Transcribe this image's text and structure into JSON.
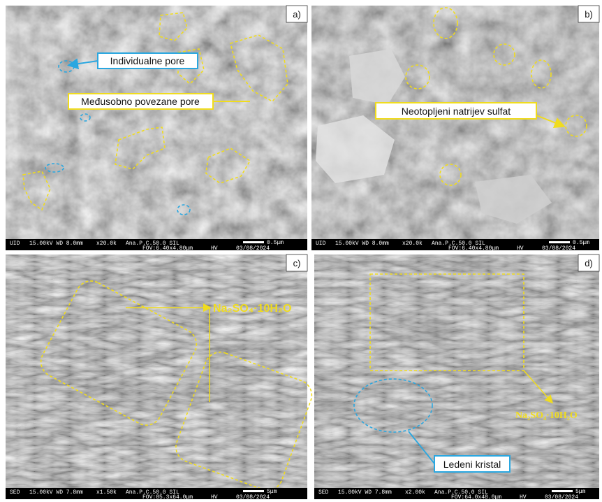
{
  "panels": [
    {
      "label": "a)",
      "info": {
        "mode": "UID",
        "params": "15.00kV WD 8.0mm",
        "mag": "x20.0k",
        "name": "Ana.P.C.50.0 SIL",
        "scale": "0.5μm",
        "fov": "FOV:6.40x4.80μm",
        "hv": "HV",
        "date": "03/08/2024"
      },
      "annotations": [
        "Individualne pore",
        "Međusobno povezane pore"
      ]
    },
    {
      "label": "b)",
      "info": {
        "mode": "UID",
        "params": "15.00kV WD 8.0mm",
        "mag": "x20.0k",
        "name": "Ana.P.C.50.0 SIL",
        "scale": "0.5μm",
        "fov": "FOV:6.40x4.80μm",
        "hv": "HV",
        "date": "03/08/2024"
      },
      "annotations": [
        "Neotopljeni natrijev sulfat"
      ]
    },
    {
      "label": "c)",
      "info": {
        "mode": "SED",
        "params": "15.00kV WD 7.8mm",
        "mag": "x1.50k",
        "name": "Ana.P.C.50.0 SIL",
        "scale": "5μm",
        "fov": "FOV:85.3x64.0μm",
        "hv": "HV",
        "date": "03/08/2024"
      },
      "annotations": [
        "Na₂SO₄·10H₂O"
      ]
    },
    {
      "label": "d)",
      "info": {
        "mode": "SED",
        "params": "15.00kV WD 7.8mm",
        "mag": "x2.00k",
        "name": "Ana.P.C.50.0 SIL",
        "scale": "5μm",
        "fov": "FOV:64.0x48.0μm",
        "hv": "HV",
        "date": "03/08/2024"
      },
      "annotations": [
        "Na₂SO₄·10H₂O",
        "Ledeni kristal"
      ]
    }
  ]
}
